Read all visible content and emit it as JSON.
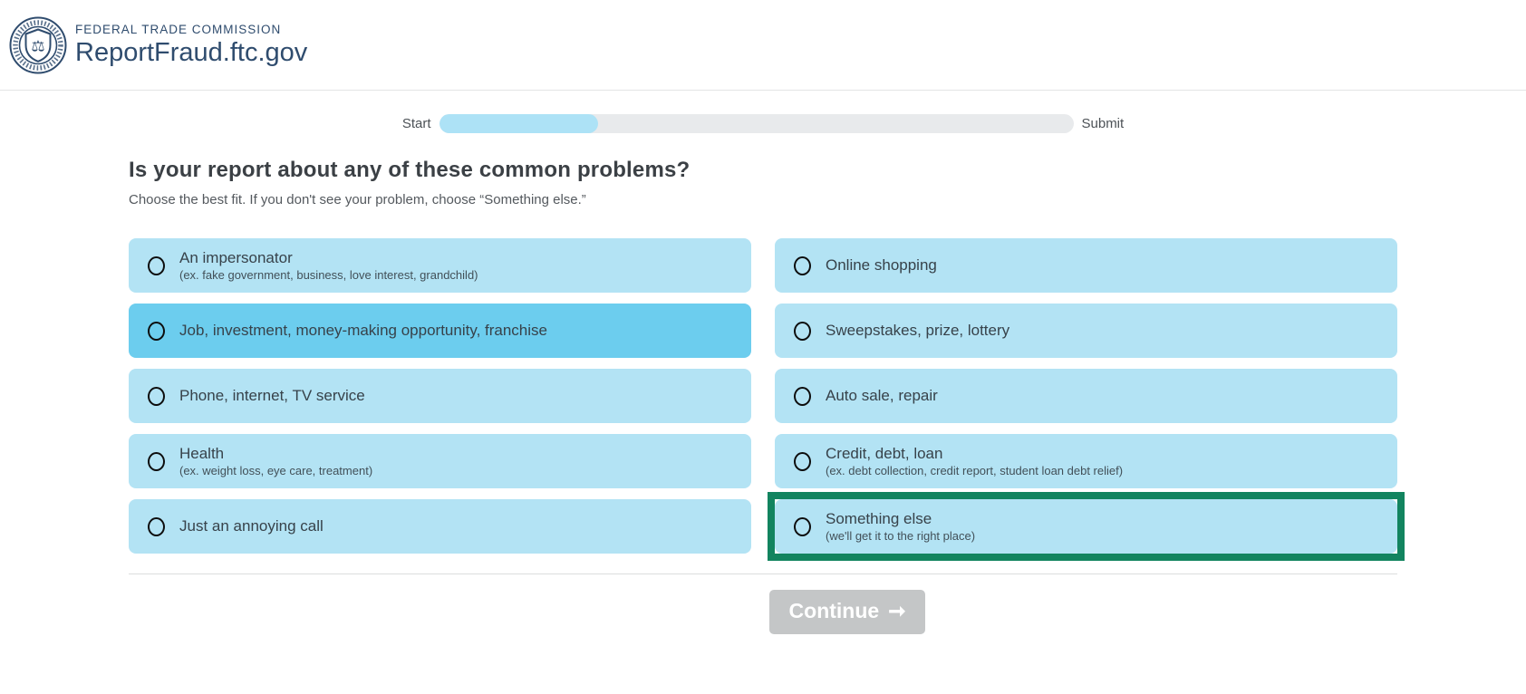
{
  "header": {
    "agency": "FEDERAL TRADE COMMISSION",
    "site": "ReportFraud.ftc.gov"
  },
  "progress": {
    "start_label": "Start",
    "submit_label": "Submit",
    "percent": 25
  },
  "question": {
    "title": "Is your report about any of these common problems?",
    "subtitle": "Choose the best fit. If you don't see your problem, choose “Something else.”"
  },
  "options": {
    "left": [
      {
        "label": "An impersonator",
        "sub": "(ex. fake government, business, love interest, grandchild)",
        "highlighted": false
      },
      {
        "label": "Job, investment, money-making opportunity, franchise",
        "sub": "",
        "highlighted": true
      },
      {
        "label": "Phone, internet, TV service",
        "sub": "",
        "highlighted": false
      },
      {
        "label": "Health",
        "sub": "(ex. weight loss, eye care, treatment)",
        "highlighted": false
      },
      {
        "label": "Just an annoying call",
        "sub": "",
        "highlighted": false
      }
    ],
    "right": [
      {
        "label": "Online shopping",
        "sub": "",
        "annotated": false
      },
      {
        "label": "Sweepstakes, prize, lottery",
        "sub": "",
        "annotated": false
      },
      {
        "label": "Auto sale, repair",
        "sub": "",
        "annotated": false
      },
      {
        "label": "Credit, debt, loan",
        "sub": "(ex. debt collection, credit report, student loan debt relief)",
        "annotated": false
      },
      {
        "label": "Something else",
        "sub": "(we'll get it to the right place)",
        "annotated": true
      }
    ]
  },
  "continue_button": {
    "label": "Continue",
    "arrow": "➞"
  },
  "icons": {
    "seal": "ftc-seal",
    "radio": "radio-unselected"
  },
  "colors": {
    "option_bg": "#b3e3f4",
    "option_bg_highlight": "#6ccdee",
    "annotation_green": "#12845f",
    "brand_navy": "#2f4c6e",
    "progress_fill": "#ade2f6",
    "progress_track": "#e8eaec",
    "button_gray": "#c4c6c7"
  }
}
